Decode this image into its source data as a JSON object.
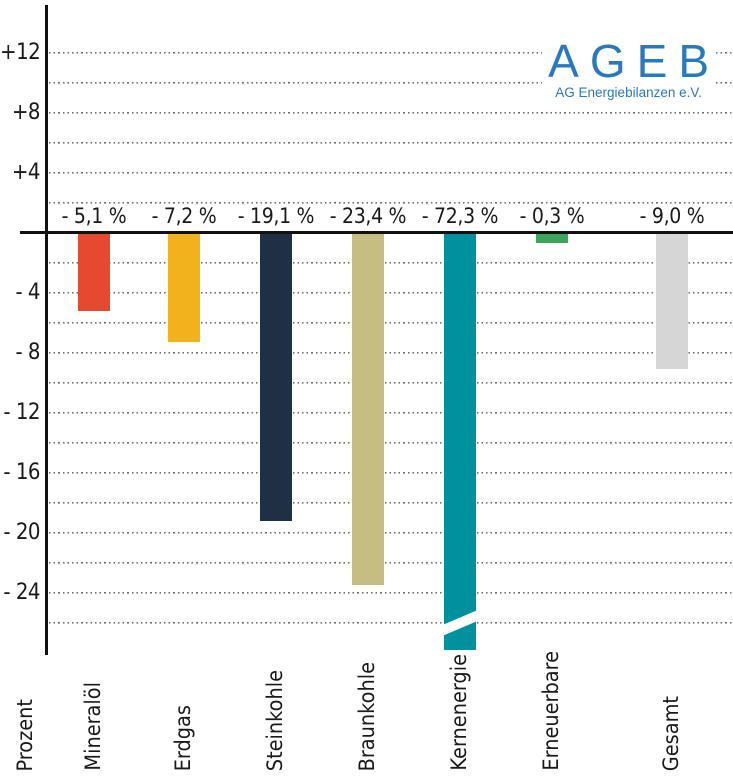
{
  "logo": {
    "title": "AGEB",
    "subtitle": "AG Energiebilanzen e.V.",
    "color": "#2979be"
  },
  "axis": {
    "unit_label": "Prozent",
    "ticks": [
      {
        "value": 12,
        "label": "+12"
      },
      {
        "value": 8,
        "label": "+8"
      },
      {
        "value": 4,
        "label": "+4"
      },
      {
        "value": -4,
        "label": "- 4"
      },
      {
        "value": -8,
        "label": "- 8"
      },
      {
        "value": -12,
        "label": "- 12"
      },
      {
        "value": -16,
        "label": "- 16"
      },
      {
        "value": -20,
        "label": "- 20"
      },
      {
        "value": -24,
        "label": "- 24"
      }
    ],
    "gridline_values": [
      12,
      10,
      8,
      6,
      4,
      2,
      -2,
      -4,
      -6,
      -8,
      -10,
      -12,
      -14,
      -16,
      -18,
      -20,
      -22,
      -24,
      -26
    ]
  },
  "chart_data": {
    "type": "bar",
    "title": "",
    "ylabel": "Prozent",
    "ylim": [
      -26,
      13
    ],
    "grid": "horizontal dotted, every 2 units",
    "legend_position": "none",
    "categories": [
      "Mineralöl",
      "Erdgas",
      "Steinkohle",
      "Braunkohle",
      "Kernenergie",
      "Erneuerbare",
      "Gesamt"
    ],
    "values": [
      -5.1,
      -7.2,
      -19.1,
      -23.4,
      -72.3,
      -0.3,
      -9.0
    ],
    "value_labels": [
      "- 5,1 %",
      "- 7,2 %",
      "- 19,1 %",
      "- 23,4 %",
      "- 72,3 %",
      "- 0,3 %",
      "- 9,0 %"
    ],
    "colors": [
      "#e54a30",
      "#f2b21d",
      "#1f3044",
      "#c5bd82",
      "#00919f",
      "#3ca45c",
      "#d6d6d6"
    ],
    "truncated_bars": [
      "Kernenergie"
    ]
  }
}
